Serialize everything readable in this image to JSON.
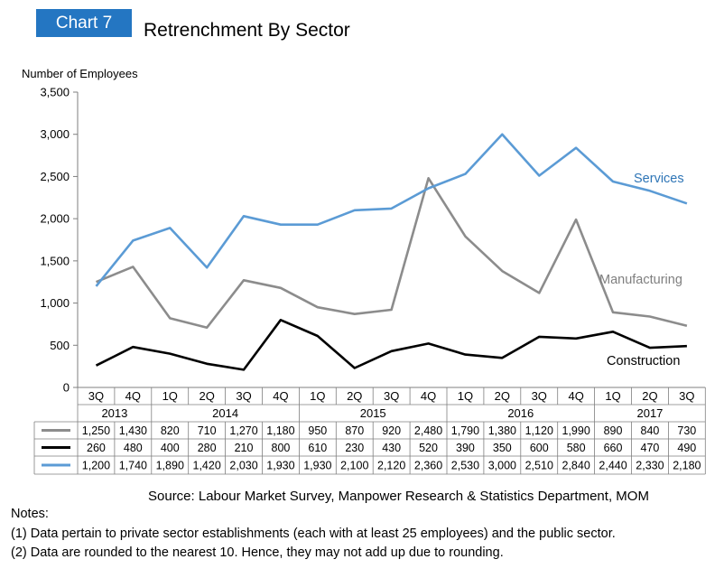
{
  "chart_number": "Chart 7",
  "chart_data": {
    "type": "line",
    "title": "Retrenchment By Sector",
    "ylabel": "Number of Employees",
    "xlabel": "",
    "ylim": [
      0,
      3500
    ],
    "yticks": [
      "0",
      "500",
      "1,000",
      "1,500",
      "2,000",
      "2,500",
      "3,000",
      "3,500"
    ],
    "grid": false,
    "categories": [
      "3Q 2013",
      "4Q 2013",
      "1Q 2014",
      "2Q 2014",
      "3Q 2014",
      "4Q 2014",
      "1Q 2015",
      "2Q 2015",
      "3Q 2015",
      "4Q 2015",
      "1Q 2016",
      "2Q 2016",
      "3Q 2016",
      "4Q 2016",
      "1Q 2017",
      "2Q 2017",
      "3Q 2017"
    ],
    "quarters": [
      "3Q",
      "4Q",
      "1Q",
      "2Q",
      "3Q",
      "4Q",
      "1Q",
      "2Q",
      "3Q",
      "4Q",
      "1Q",
      "2Q",
      "3Q",
      "4Q",
      "1Q",
      "2Q",
      "3Q"
    ],
    "years": [
      {
        "label": "2013",
        "span": 2
      },
      {
        "label": "2014",
        "span": 4
      },
      {
        "label": "2015",
        "span": 4
      },
      {
        "label": "2016",
        "span": 4
      },
      {
        "label": "2017",
        "span": 3
      }
    ],
    "series": [
      {
        "name": "Manufacturing",
        "color": "#8c8c8c",
        "values": [
          1250,
          1430,
          820,
          710,
          1270,
          1180,
          950,
          870,
          920,
          2480,
          1790,
          1380,
          1120,
          1990,
          890,
          840,
          730
        ],
        "labels": [
          "1,250",
          "1,430",
          "820",
          "710",
          "1,270",
          "1,180",
          "950",
          "870",
          "920",
          "2,480",
          "1,790",
          "1,380",
          "1,120",
          "1,990",
          "890",
          "840",
          "730"
        ]
      },
      {
        "name": "Construction",
        "color": "#000000",
        "values": [
          260,
          480,
          400,
          280,
          210,
          800,
          610,
          230,
          430,
          520,
          390,
          350,
          600,
          580,
          660,
          470,
          490
        ],
        "labels": [
          "260",
          "480",
          "400",
          "280",
          "210",
          "800",
          "610",
          "230",
          "430",
          "520",
          "390",
          "350",
          "600",
          "580",
          "660",
          "470",
          "490"
        ]
      },
      {
        "name": "Services",
        "color": "#5b9bd5",
        "values": [
          1200,
          1740,
          1890,
          1420,
          2030,
          1930,
          1930,
          2100,
          2120,
          2360,
          2530,
          3000,
          2510,
          2840,
          2440,
          2330,
          2180
        ],
        "labels": [
          "1,200",
          "1,740",
          "1,890",
          "1,420",
          "2,030",
          "1,930",
          "1,930",
          "2,100",
          "2,120",
          "2,360",
          "2,530",
          "3,000",
          "2,510",
          "2,840",
          "2,440",
          "2,330",
          "2,180"
        ]
      }
    ]
  },
  "source": "Source: Labour Market Survey, Manpower Research & Statistics Department, MOM",
  "notes": {
    "heading": "Notes:",
    "items": [
      "(1)  Data pertain to private sector establishments (each with at least 25 employees) and the public sector.",
      "(2)  Data are rounded to the nearest 10.  Hence, they may not add up due to rounding."
    ]
  }
}
